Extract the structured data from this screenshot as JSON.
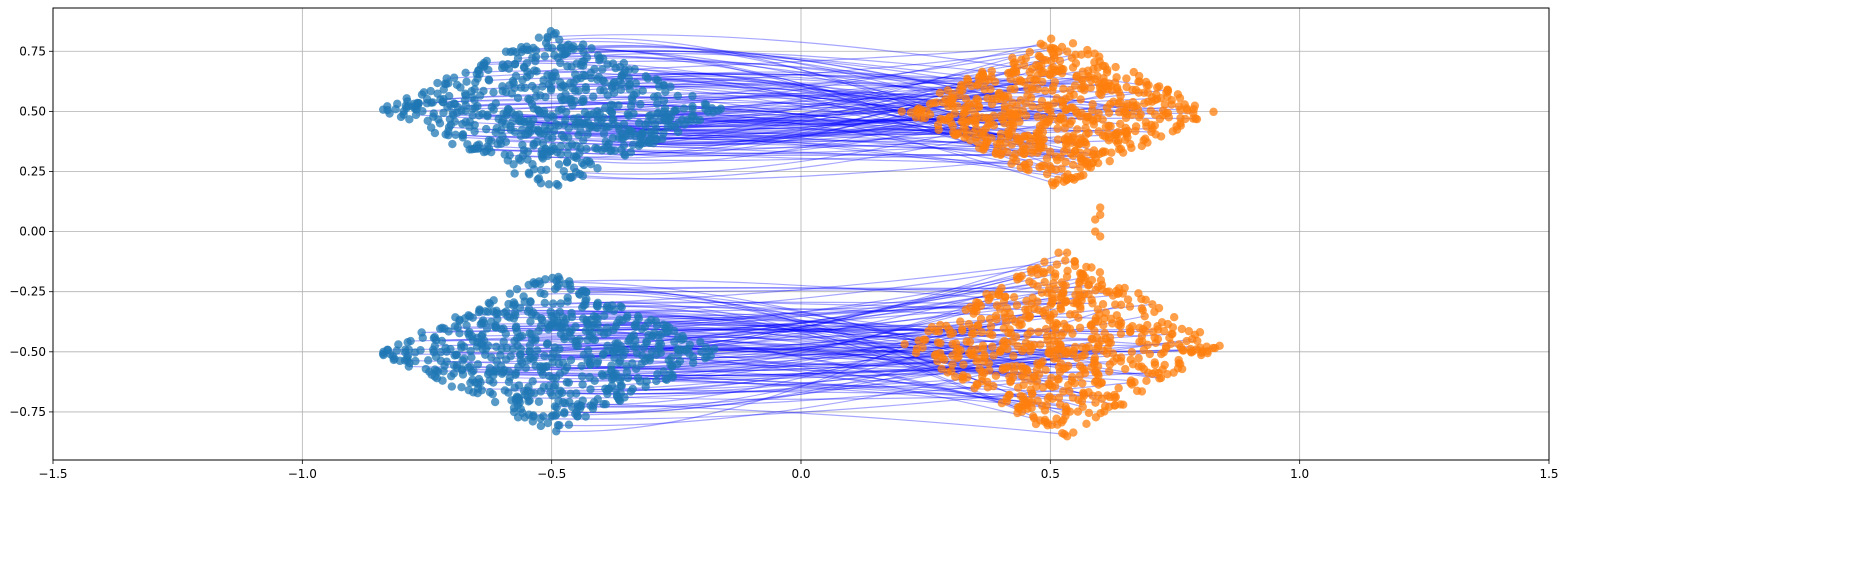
{
  "chart_data": {
    "type": "scatter",
    "title": "",
    "xlabel": "",
    "ylabel": "",
    "xlim": [
      -1.5,
      1.5
    ],
    "ylim": [
      -0.95,
      0.93
    ],
    "grid": true,
    "x_ticks": [
      -1.5,
      -1.0,
      -0.5,
      0.0,
      0.5,
      1.0,
      1.5
    ],
    "x_tick_labels": [
      "−1.5",
      "−1.0",
      "−0.5",
      "0.0",
      "0.5",
      "1.0",
      "1.5"
    ],
    "y_ticks": [
      0.75,
      0.5,
      0.25,
      0.0,
      -0.25,
      -0.5,
      -0.75
    ],
    "y_tick_labels": [
      "0.75",
      "0.50",
      "0.25",
      "0.00",
      "−0.25",
      "−0.50",
      "−0.75"
    ],
    "colors": {
      "source_points": "#1f77b4",
      "target_points": "#ff7f0e",
      "trajectories": "#0000ff",
      "grid": "#b0b0b0"
    },
    "series": [
      {
        "role": "source",
        "clusters": [
          {
            "center": [
              -0.5,
              0.5
            ],
            "x_range": [
              -0.85,
              -0.15
            ],
            "y_range": [
              0.17,
              0.84
            ],
            "shape": "diamond"
          },
          {
            "center": [
              -0.5,
              -0.5
            ],
            "x_range": [
              -0.85,
              -0.15
            ],
            "y_range": [
              -0.84,
              -0.17
            ],
            "shape": "diamond"
          }
        ]
      },
      {
        "role": "target",
        "clusters": [
          {
            "center": [
              0.5,
              0.5
            ],
            "x_range": [
              0.2,
              0.83
            ],
            "y_range": [
              0.18,
              0.82
            ],
            "shape": "diamond"
          },
          {
            "center": [
              0.55,
              -0.5
            ],
            "x_range": [
              0.2,
              0.85
            ],
            "y_range": [
              -0.87,
              -0.07
            ],
            "shape": "diamond"
          },
          {
            "stray_points": [
              [
                0.6,
                0.1
              ],
              [
                0.6,
                0.07
              ],
              [
                0.59,
                0.05
              ],
              [
                0.59,
                0.0
              ],
              [
                0.6,
                -0.02
              ]
            ]
          }
        ]
      },
      {
        "role": "trajectories",
        "description": "curved lines joining source points to target points",
        "count_upper": 140,
        "count_lower": 140
      }
    ]
  }
}
